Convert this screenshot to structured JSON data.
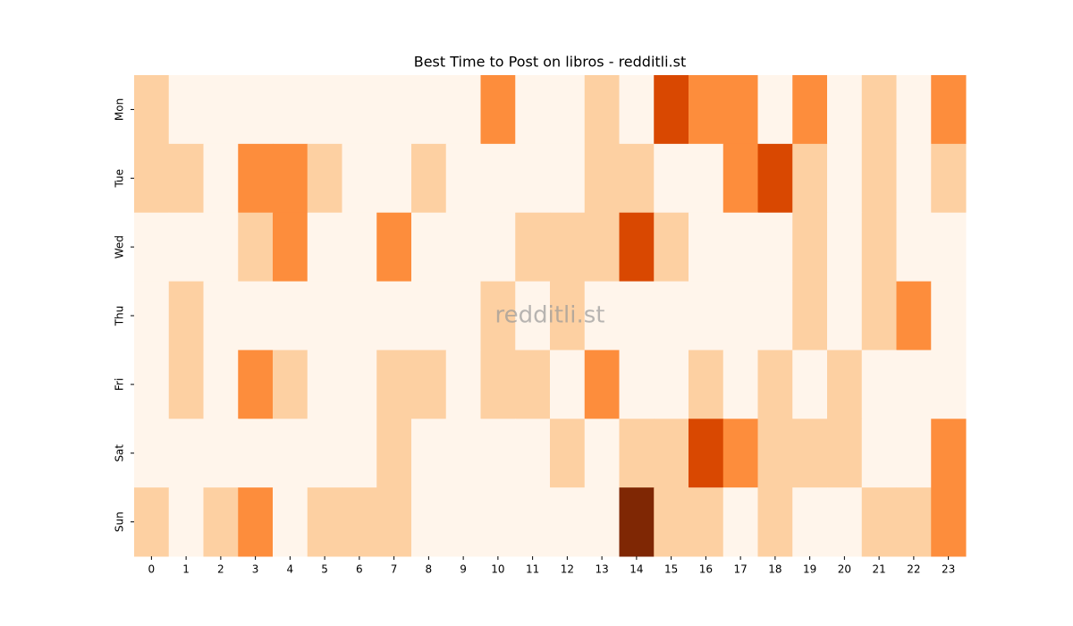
{
  "chart_data": {
    "type": "heatmap",
    "title": "Best Time to Post on libros - redditli.st",
    "watermark": "redditli.st",
    "x_categories": [
      "0",
      "1",
      "2",
      "3",
      "4",
      "5",
      "6",
      "7",
      "8",
      "9",
      "10",
      "11",
      "12",
      "13",
      "14",
      "15",
      "16",
      "17",
      "18",
      "19",
      "20",
      "21",
      "22",
      "23"
    ],
    "y_categories": [
      "Mon",
      "Tue",
      "Wed",
      "Thu",
      "Fri",
      "Sat",
      "Sun"
    ],
    "values": [
      [
        1,
        0,
        0,
        0,
        0,
        0,
        0,
        0,
        0,
        0,
        2,
        0,
        0,
        1,
        0,
        3,
        2,
        2,
        0,
        2,
        0,
        1,
        0,
        2
      ],
      [
        1,
        1,
        0,
        2,
        2,
        1,
        0,
        0,
        1,
        0,
        0,
        0,
        0,
        1,
        1,
        0,
        0,
        2,
        3,
        1,
        0,
        1,
        0,
        1
      ],
      [
        0,
        0,
        0,
        1,
        2,
        0,
        0,
        2,
        0,
        0,
        0,
        1,
        1,
        1,
        3,
        1,
        0,
        0,
        0,
        1,
        0,
        1,
        0,
        0
      ],
      [
        0,
        1,
        0,
        0,
        0,
        0,
        0,
        0,
        0,
        0,
        1,
        0,
        1,
        0,
        0,
        0,
        0,
        0,
        0,
        1,
        0,
        1,
        2,
        0
      ],
      [
        0,
        1,
        0,
        2,
        1,
        0,
        0,
        1,
        1,
        0,
        1,
        1,
        0,
        2,
        0,
        0,
        1,
        0,
        1,
        0,
        1,
        0,
        0,
        0
      ],
      [
        0,
        0,
        0,
        0,
        0,
        0,
        0,
        1,
        0,
        0,
        0,
        0,
        1,
        0,
        1,
        1,
        3,
        2,
        1,
        1,
        1,
        0,
        0,
        2
      ],
      [
        1,
        0,
        1,
        2,
        0,
        1,
        1,
        1,
        0,
        0,
        0,
        0,
        0,
        0,
        4,
        1,
        1,
        0,
        1,
        0,
        0,
        1,
        1,
        2
      ]
    ],
    "zlim": [
      0,
      4
    ],
    "colors": [
      "#fff5eb",
      "#fdd0a2",
      "#fd8d3c",
      "#d94801",
      "#7f2704"
    ]
  }
}
